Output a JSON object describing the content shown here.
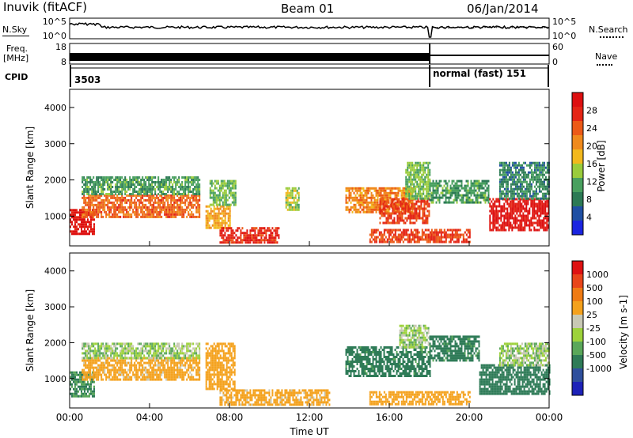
{
  "header": {
    "station": "Inuvik (fitACF)",
    "beam": "Beam 01",
    "date": "06/Jan/2014"
  },
  "left_labels": {
    "nsky": "N.Sky",
    "freq": "Freq.",
    "mhz": "[MHz]",
    "cpid": "CPID"
  },
  "right_labels": {
    "nsearch": "N.Search",
    "nave": "Nave"
  },
  "noise_panel": {
    "left_ticks": [
      "10^5",
      "10^0"
    ],
    "right_ticks": [
      "10^5",
      "10^0"
    ]
  },
  "freq_panel": {
    "left_ticks": [
      "18",
      "8"
    ],
    "right_ticks": [
      "60",
      "0"
    ]
  },
  "cpid_panel": {
    "segments": [
      {
        "label": "3503"
      },
      {
        "label": "normal (fast) 151"
      }
    ]
  },
  "chart_data": [
    {
      "type": "heatmap",
      "parameter": "Power",
      "ylabel": "Slant Range [km]",
      "xlabel": "",
      "x_ticks": [
        "00:00",
        "04:00",
        "08:00",
        "12:00",
        "16:00",
        "20:00",
        "00:00"
      ],
      "xlim_hours": [
        0,
        24
      ],
      "ylim": [
        180,
        4500
      ],
      "y_ticks": [
        1000,
        2000,
        3000,
        4000
      ],
      "colorbar": {
        "label": "Power [dB]",
        "ticks": [
          "4",
          "8",
          "12",
          "16",
          "20",
          "24",
          "28"
        ],
        "range": [
          0,
          30
        ],
        "colors": [
          "#1a24e0",
          "#1f4fa3",
          "#2c7a55",
          "#49a05f",
          "#9acc3c",
          "#f2b81d",
          "#f08a1c",
          "#ec5a17",
          "#e42515",
          "#dd0f10"
        ]
      },
      "regions": [
        {
          "t0": 0.0,
          "t1": 1.2,
          "r0": 500,
          "r1": 1200,
          "value": 28
        },
        {
          "t0": 0.6,
          "t1": 6.5,
          "r0": 1000,
          "r1": 1600,
          "value": 22
        },
        {
          "t0": 0.6,
          "t1": 6.5,
          "r0": 1600,
          "r1": 2100,
          "value": 10
        },
        {
          "t0": 6.8,
          "t1": 8.0,
          "r0": 700,
          "r1": 1300,
          "value": 18
        },
        {
          "t0": 7.0,
          "t1": 8.3,
          "r0": 1300,
          "r1": 2000,
          "value": 12
        },
        {
          "t0": 7.5,
          "t1": 10.5,
          "r0": 250,
          "r1": 700,
          "value": 26
        },
        {
          "t0": 10.8,
          "t1": 11.5,
          "r0": 1200,
          "r1": 1800,
          "value": 14
        },
        {
          "t0": 13.8,
          "t1": 17.2,
          "r0": 1100,
          "r1": 1800,
          "value": 20
        },
        {
          "t0": 15.5,
          "t1": 18.0,
          "r0": 800,
          "r1": 1500,
          "value": 24
        },
        {
          "t0": 16.8,
          "t1": 18.0,
          "r0": 1500,
          "r1": 2500,
          "value": 12
        },
        {
          "t0": 15.0,
          "t1": 20.0,
          "r0": 300,
          "r1": 650,
          "value": 24
        },
        {
          "t0": 18.0,
          "t1": 21.0,
          "r0": 1400,
          "r1": 2000,
          "value": 10
        },
        {
          "t0": 21.0,
          "t1": 24.0,
          "r0": 600,
          "r1": 1500,
          "value": 28
        },
        {
          "t0": 21.5,
          "t1": 24.0,
          "r0": 1500,
          "r1": 2500,
          "value": 8
        }
      ]
    },
    {
      "type": "heatmap",
      "parameter": "Velocity",
      "ylabel": "Slant Range [km]",
      "xlabel": "Time UT",
      "x_ticks": [
        "00:00",
        "04:00",
        "08:00",
        "12:00",
        "16:00",
        "20:00",
        "00:00"
      ],
      "xlim_hours": [
        0,
        24
      ],
      "ylim": [
        180,
        4500
      ],
      "y_ticks": [
        1000,
        2000,
        3000,
        4000
      ],
      "colorbar": {
        "label": "Velocity [m s-1]",
        "ticks": [
          "1000",
          "500",
          "100",
          "25",
          "-25",
          "-100",
          "-500",
          "-1000"
        ],
        "colors": [
          "#1d22b8",
          "#2f4f9c",
          "#2e7b57",
          "#5aa75a",
          "#9dd23b",
          "#c8c8b4",
          "#f4a11c",
          "#ef7b14",
          "#e8451a",
          "#de1212"
        ]
      },
      "regions": [
        {
          "t0": 0.0,
          "t1": 1.2,
          "r0": 500,
          "r1": 1200,
          "value": -100
        },
        {
          "t0": 0.6,
          "t1": 6.5,
          "r0": 1000,
          "r1": 1600,
          "value": 150
        },
        {
          "t0": 0.6,
          "t1": 6.5,
          "r0": 1600,
          "r1": 2000,
          "value": 0
        },
        {
          "t0": 6.8,
          "t1": 8.3,
          "r0": 700,
          "r1": 2000,
          "value": 200
        },
        {
          "t0": 7.5,
          "t1": 13.0,
          "r0": 250,
          "r1": 700,
          "value": 150
        },
        {
          "t0": 13.8,
          "t1": 18.0,
          "r0": 1100,
          "r1": 1900,
          "value": -150
        },
        {
          "t0": 16.5,
          "t1": 18.0,
          "r0": 1900,
          "r1": 2500,
          "value": 0
        },
        {
          "t0": 18.0,
          "t1": 20.5,
          "r0": 1500,
          "r1": 2200,
          "value": -150
        },
        {
          "t0": 15.0,
          "t1": 20.0,
          "r0": 300,
          "r1": 650,
          "value": 200
        },
        {
          "t0": 20.5,
          "t1": 24.0,
          "r0": 600,
          "r1": 1400,
          "value": -300
        },
        {
          "t0": 21.5,
          "t1": 24.0,
          "r0": 1400,
          "r1": 2000,
          "value": 0
        }
      ]
    }
  ]
}
